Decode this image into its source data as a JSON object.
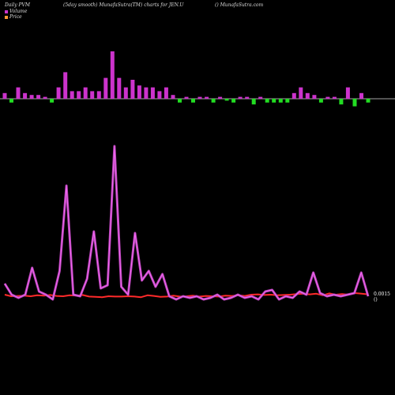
{
  "header": {
    "left": "Daily PVM",
    "middle": "(5day smooth) MunafaSutra(TM) charts for JEN.U",
    "right": "() MunafaSutra.com"
  },
  "legend": {
    "volume_label": "Volume",
    "price_label": "Price",
    "volume_color": "#cc33cc",
    "price_color": "#ff9933"
  },
  "chart_data": {
    "type": "line",
    "title": "Daily PVM",
    "last_value_label": "0.0015 ()",
    "volume_bars": [
      3,
      -2,
      6,
      3,
      2,
      2,
      1,
      -2,
      6,
      14,
      4,
      4,
      6,
      4,
      4,
      11,
      25,
      11,
      6,
      10,
      7,
      6,
      6,
      4,
      6,
      2,
      -2,
      1,
      -2,
      1,
      1,
      -2,
      1,
      -1,
      -2,
      1,
      1,
      -3,
      1,
      -2,
      -2,
      -2,
      -2,
      3,
      6,
      3,
      2,
      -2,
      1,
      1,
      -3,
      6,
      -4,
      3,
      -2
    ],
    "volume_line": [
      0.13,
      0.06,
      0.04,
      0.06,
      0.23,
      0.08,
      0.06,
      0.03,
      0.21,
      0.75,
      0.06,
      0.05,
      0.16,
      0.46,
      0.1,
      0.12,
      1.0,
      0.11,
      0.06,
      0.45,
      0.15,
      0.21,
      0.11,
      0.19,
      0.05,
      0.03,
      0.05,
      0.04,
      0.05,
      0.03,
      0.04,
      0.06,
      0.03,
      0.04,
      0.06,
      0.04,
      0.05,
      0.03,
      0.08,
      0.09,
      0.03,
      0.05,
      0.04,
      0.08,
      0.06,
      0.2,
      0.07,
      0.05,
      0.06,
      0.05,
      0.06,
      0.07,
      0.2,
      0.05
    ],
    "price_line": [
      0.3,
      0.25,
      0.26,
      0.27,
      0.25,
      0.28,
      0.27,
      0.29,
      0.26,
      0.25,
      0.28,
      0.27,
      0.29,
      0.24,
      0.23,
      0.22,
      0.25,
      0.24,
      0.24,
      0.25,
      0.24,
      0.22,
      0.28,
      0.26,
      0.23,
      0.24,
      0.27,
      0.24,
      0.25,
      0.27,
      0.24,
      0.26,
      0.25,
      0.24,
      0.27,
      0.26,
      0.28,
      0.26,
      0.3,
      0.31,
      0.29,
      0.3,
      0.28,
      0.29,
      0.3,
      0.32,
      0.33,
      0.31,
      0.33,
      0.28,
      0.34,
      0.3,
      0.32,
      0.3,
      0.35,
      0.33,
      0.31
    ]
  }
}
